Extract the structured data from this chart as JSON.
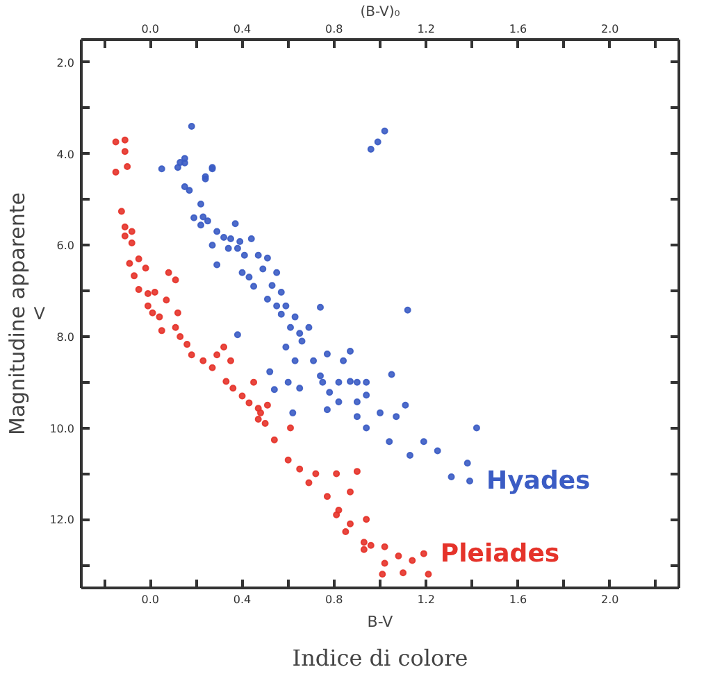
{
  "chart_data": {
    "type": "scatter",
    "xlabel": "B-V",
    "x2label": "(B-V)₀",
    "ylabel": "Magnitudine apparente",
    "annotations": [
      "V",
      "Indice di colore"
    ],
    "xlim": [
      -0.3,
      2.3
    ],
    "x2lim": [
      -0.3,
      2.3
    ],
    "ylim": [
      13.5,
      1.5
    ],
    "xticks": [
      {
        "value": -0.2,
        "label": null
      },
      {
        "value": 0,
        "label": "0.0"
      },
      {
        "value": 0.2,
        "label": null
      },
      {
        "value": 0.4,
        "label": "0.4"
      },
      {
        "value": 0.6,
        "label": null
      },
      {
        "value": 0.8,
        "label": "0.8"
      },
      {
        "value": 1.0,
        "label": null
      },
      {
        "value": 1.2,
        "label": "1.2"
      },
      {
        "value": 1.4,
        "label": null
      },
      {
        "value": 1.6,
        "label": "1.6"
      },
      {
        "value": 1.8,
        "label": null
      },
      {
        "value": 2.0,
        "label": "2.0"
      },
      {
        "value": 2.2,
        "label": null
      }
    ],
    "x2ticks": [
      {
        "value": -0.2,
        "label": null
      },
      {
        "value": 0,
        "label": "0.0"
      },
      {
        "value": 0.2,
        "label": null
      },
      {
        "value": 0.4,
        "label": "0.4"
      },
      {
        "value": 0.6,
        "label": null
      },
      {
        "value": 0.8,
        "label": "0.8"
      },
      {
        "value": 1.0,
        "label": null
      },
      {
        "value": 1.2,
        "label": "1.2"
      },
      {
        "value": 1.4,
        "label": null
      },
      {
        "value": 1.6,
        "label": "1.6"
      },
      {
        "value": 1.8,
        "label": null
      },
      {
        "value": 2.0,
        "label": "2.0"
      },
      {
        "value": 2.2,
        "label": null
      }
    ],
    "yticks": [
      {
        "value": 2,
        "label": "2.0"
      },
      {
        "value": 3,
        "label": null
      },
      {
        "value": 4,
        "label": "4.0"
      },
      {
        "value": 5,
        "label": null
      },
      {
        "value": 6,
        "label": "6.0"
      },
      {
        "value": 7,
        "label": null
      },
      {
        "value": 8,
        "label": "8.0"
      },
      {
        "value": 9,
        "label": null
      },
      {
        "value": 10,
        "label": "10.0"
      },
      {
        "value": 11,
        "label": null
      },
      {
        "value": 12,
        "label": "12.0"
      },
      {
        "value": 13,
        "label": null
      }
    ],
    "grid": false,
    "marker": "circle",
    "series": [
      {
        "name": "Hyades",
        "color": "#3b5cc4",
        "x": [
          0.18,
          0.13,
          0.15,
          0.05,
          0.27,
          0.24,
          0.96,
          0.99,
          1.02,
          0.12,
          0.15,
          0.27,
          0.24,
          0.15,
          0.17,
          0.22,
          0.19,
          0.23,
          0.25,
          0.22,
          0.29,
          0.32,
          0.37,
          0.35,
          0.39,
          0.27,
          0.34,
          0.38,
          0.44,
          0.29,
          0.41,
          0.47,
          0.51,
          0.4,
          0.43,
          0.45,
          0.49,
          0.55,
          0.53,
          0.57,
          0.51,
          0.55,
          0.59,
          0.57,
          0.63,
          0.61,
          0.65,
          0.69,
          0.74,
          0.38,
          0.59,
          0.66,
          0.63,
          0.71,
          0.77,
          0.87,
          0.84,
          0.52,
          0.6,
          0.65,
          0.74,
          0.75,
          0.82,
          0.87,
          0.9,
          0.94,
          0.82,
          0.9,
          0.94,
          0.78,
          0.54,
          0.62,
          0.77,
          0.9,
          1.0,
          1.05,
          1.11,
          1.07,
          0.94,
          1.12,
          1.04,
          1.19,
          1.13,
          1.25,
          1.42,
          1.31,
          1.38,
          1.39
        ],
        "values": [
          3.4,
          4.19,
          4.1,
          4.33,
          4.3,
          4.5,
          3.9,
          3.74,
          3.5,
          4.3,
          4.2,
          4.33,
          4.55,
          4.72,
          4.8,
          5.1,
          5.4,
          5.38,
          5.47,
          5.56,
          5.7,
          5.83,
          5.53,
          5.86,
          5.92,
          6.0,
          6.07,
          6.07,
          5.86,
          6.43,
          6.22,
          6.22,
          6.28,
          6.6,
          6.7,
          6.9,
          6.52,
          6.6,
          6.88,
          7.03,
          7.18,
          7.33,
          7.33,
          7.51,
          7.57,
          7.8,
          7.93,
          7.8,
          7.36,
          7.96,
          8.23,
          8.1,
          8.53,
          8.53,
          8.38,
          8.32,
          8.53,
          8.77,
          9.0,
          9.13,
          8.86,
          9.0,
          9.0,
          8.98,
          9.0,
          9.0,
          9.43,
          9.43,
          9.28,
          9.22,
          9.16,
          9.67,
          9.6,
          9.75,
          9.67,
          8.83,
          9.5,
          9.75,
          10.0,
          7.42,
          10.3,
          10.3,
          10.6,
          10.5,
          10.0,
          11.07,
          10.77,
          11.16
        ]
      },
      {
        "name": "Pleiades",
        "color": "#e5332a",
        "x": [
          -0.15,
          -0.11,
          -0.11,
          -0.15,
          -0.1,
          -0.125,
          -0.11,
          -0.08,
          -0.11,
          -0.08,
          -0.05,
          -0.09,
          -0.02,
          -0.07,
          0.08,
          0.11,
          -0.05,
          -0.01,
          0.02,
          0.07,
          -0.01,
          0.01,
          0.04,
          0.12,
          0.05,
          0.11,
          0.13,
          0.16,
          0.18,
          0.23,
          0.27,
          0.32,
          0.29,
          0.35,
          0.33,
          0.36,
          0.45,
          0.4,
          0.43,
          0.47,
          0.51,
          0.47,
          0.5,
          0.61,
          0.48,
          0.54,
          0.6,
          0.65,
          0.69,
          0.72,
          0.81,
          0.87,
          0.9,
          0.77,
          0.82,
          0.81,
          0.87,
          0.85,
          0.94,
          0.93,
          0.93,
          0.96,
          1.02,
          1.08,
          1.14,
          1.02,
          1.1,
          1.01,
          1.21,
          1.19
        ],
        "values": [
          3.74,
          3.7,
          3.95,
          4.4,
          4.28,
          5.26,
          5.6,
          5.7,
          5.8,
          5.95,
          6.3,
          6.4,
          6.5,
          6.67,
          6.6,
          6.76,
          6.97,
          7.06,
          7.03,
          7.2,
          7.33,
          7.48,
          7.57,
          7.48,
          7.87,
          7.8,
          8.0,
          8.17,
          8.4,
          8.53,
          8.68,
          8.23,
          8.4,
          8.53,
          8.98,
          9.13,
          9.0,
          9.3,
          9.45,
          9.57,
          9.5,
          9.81,
          9.9,
          10.0,
          9.67,
          10.26,
          10.7,
          10.9,
          11.2,
          11.0,
          11.0,
          11.4,
          10.95,
          11.5,
          11.8,
          11.9,
          12.1,
          12.27,
          12.0,
          12.5,
          12.66,
          12.57,
          12.6,
          12.8,
          12.9,
          12.96,
          13.17,
          13.2,
          13.2,
          12.75
        ]
      }
    ]
  }
}
